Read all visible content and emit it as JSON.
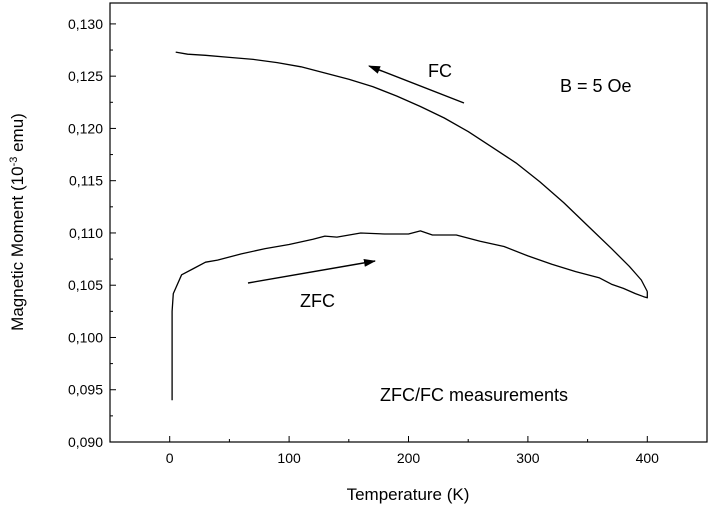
{
  "chart_data": {
    "type": "line",
    "title": "",
    "xlabel": "Temperature (K)",
    "ylabel_prefix": "Magnetic Moment (10",
    "ylabel_exp": "-3",
    "ylabel_suffix": " emu)",
    "xlim": [
      -50,
      450
    ],
    "ylim": [
      0.09,
      0.132
    ],
    "x_ticks": [
      0,
      100,
      200,
      300,
      400
    ],
    "x_tick_labels": [
      "0",
      "100",
      "200",
      "300",
      "400"
    ],
    "y_ticks": [
      0.09,
      0.095,
      0.1,
      0.105,
      0.11,
      0.115,
      0.12,
      0.125,
      0.13
    ],
    "y_tick_labels": [
      "0,090",
      "0,095",
      "0,100",
      "0,105",
      "0,110",
      "0,115",
      "0,120",
      "0,125",
      "0,130"
    ],
    "grid": false,
    "line_color": "#000000",
    "series": [
      {
        "name": "ZFC",
        "x": [
          2,
          2,
          3,
          10,
          20,
          30,
          40,
          60,
          80,
          100,
          120,
          130,
          140,
          160,
          180,
          200,
          210,
          220,
          240,
          260,
          280,
          300,
          320,
          340,
          360,
          370,
          380,
          390,
          397,
          400,
          400
        ],
        "y": [
          0.094,
          0.1025,
          0.1042,
          0.106,
          0.1066,
          0.1072,
          0.1074,
          0.108,
          0.1085,
          0.1089,
          0.1094,
          0.1097,
          0.1096,
          0.11,
          0.1099,
          0.1099,
          0.1102,
          0.1098,
          0.1098,
          0.1092,
          0.1087,
          0.1078,
          0.107,
          0.1063,
          0.1057,
          0.1051,
          0.1047,
          0.1042,
          0.1039,
          0.1038,
          0.1044
        ]
      },
      {
        "name": "FC",
        "x": [
          400,
          395,
          385,
          370,
          350,
          330,
          310,
          290,
          270,
          250,
          230,
          210,
          190,
          170,
          150,
          130,
          110,
          90,
          70,
          50,
          30,
          15,
          5
        ],
        "y": [
          0.1044,
          0.1055,
          0.1068,
          0.1085,
          0.1107,
          0.1129,
          0.1149,
          0.1167,
          0.1182,
          0.1197,
          0.121,
          0.1221,
          0.1231,
          0.124,
          0.1247,
          0.1253,
          0.1259,
          0.1263,
          0.1266,
          0.1268,
          0.127,
          0.1271,
          0.1273
        ]
      }
    ],
    "annotations": {
      "field": "B = 5 Oe",
      "measurement": "ZFC/FC measurements",
      "fc_label": "FC",
      "zfc_label": "ZFC"
    }
  }
}
